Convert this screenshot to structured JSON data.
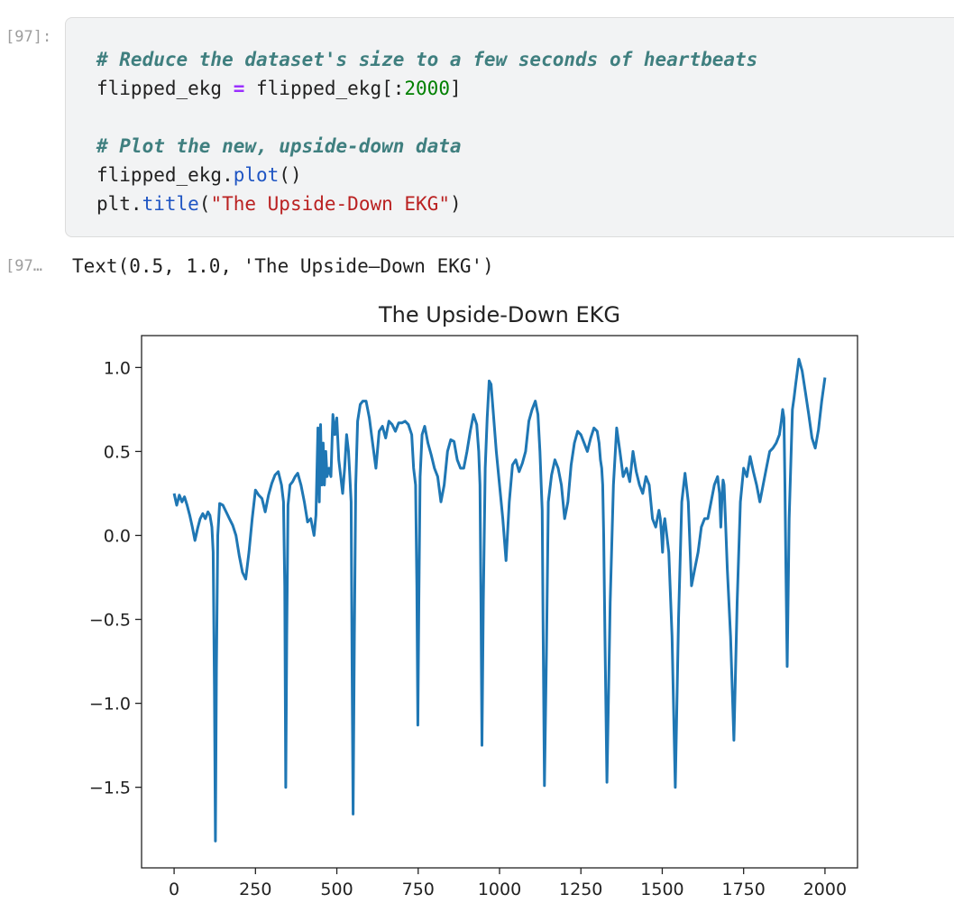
{
  "input_cell": {
    "prompt": "[97]:",
    "lines": [
      {
        "comment": "# Reduce the dataset's size to a few seconds of heartbeats"
      },
      {
        "var": "flipped_ekg ",
        "op": "=",
        "rhs_a": " flipped_ekg[:",
        "num": "2000",
        "rhs_b": "]"
      },
      {
        "blank": ""
      },
      {
        "comment": "# Plot the new, upside-down data"
      },
      {
        "obj": "flipped_ekg.",
        "fn": "plot",
        "args": "()"
      },
      {
        "obj": "plt.",
        "fn": "title",
        "open": "(",
        "str": "\"The Upside-Down EKG\"",
        "close": ")"
      }
    ]
  },
  "output_cell": {
    "prompt": "[97…",
    "text": "Text(0.5, 1.0, 'The Upside–Down EKG')"
  },
  "chart_data": {
    "type": "line",
    "title": "The Upside-Down EKG",
    "xlabel": "",
    "ylabel": "",
    "xlim": [
      -100,
      2100
    ],
    "ylim": [
      -1.98,
      1.19
    ],
    "xticks": [
      0,
      250,
      500,
      750,
      1000,
      1250,
      1500,
      1750,
      2000
    ],
    "yticks": [
      1.0,
      0.5,
      0.0,
      -0.5,
      -1.0,
      -1.5
    ],
    "xtick_labels": [
      "0",
      "250",
      "500",
      "750",
      "1000",
      "1250",
      "1500",
      "1750",
      "2000"
    ],
    "ytick_labels": [
      "1.0",
      "0.5",
      "0.0",
      "−0.5",
      "−1.0",
      "−1.5"
    ],
    "grid": false,
    "line_color": "#1f77b4",
    "series": [
      {
        "x": [
          0,
          8,
          16,
          24,
          32,
          40,
          48,
          56,
          64,
          72,
          80,
          88,
          96,
          104,
          110,
          116,
          120,
          124,
          127,
          130,
          134,
          140,
          150,
          160,
          170,
          180,
          190,
          200,
          210,
          220,
          230,
          240,
          250,
          260,
          270,
          280,
          290,
          300,
          310,
          320,
          330,
          336,
          340,
          343,
          346,
          350,
          356,
          364,
          372,
          380,
          390,
          400,
          410,
          420,
          430,
          436,
          442,
          446,
          450,
          454,
          458,
          462,
          466,
          470,
          476,
          482,
          488,
          494,
          500,
          506,
          512,
          518,
          524,
          530,
          536,
          540,
          544,
          547,
          550,
          554,
          558,
          564,
          572,
          580,
          590,
          600,
          610,
          620,
          630,
          640,
          650,
          660,
          670,
          680,
          690,
          700,
          710,
          720,
          730,
          736,
          742,
          746,
          749,
          752,
          756,
          762,
          770,
          780,
          790,
          800,
          810,
          820,
          830,
          840,
          850,
          860,
          870,
          880,
          890,
          900,
          910,
          920,
          930,
          936,
          940,
          943,
          946,
          950,
          956,
          962,
          968,
          974,
          980,
          990,
          1000,
          1010,
          1020,
          1030,
          1040,
          1050,
          1060,
          1070,
          1080,
          1090,
          1100,
          1110,
          1118,
          1124,
          1128,
          1131,
          1134,
          1138,
          1144,
          1150,
          1160,
          1170,
          1180,
          1190,
          1200,
          1210,
          1220,
          1230,
          1240,
          1250,
          1260,
          1270,
          1280,
          1290,
          1300,
          1306,
          1310,
          1314,
          1317,
          1320,
          1324,
          1330,
          1340,
          1350,
          1360,
          1370,
          1380,
          1390,
          1400,
          1410,
          1420,
          1430,
          1440,
          1450,
          1460,
          1470,
          1480,
          1490,
          1494,
          1498,
          1501,
          1504,
          1508,
          1514,
          1520,
          1530,
          1540,
          1550,
          1560,
          1570,
          1580,
          1590,
          1600,
          1610,
          1620,
          1630,
          1640,
          1650,
          1660,
          1670,
          1676,
          1680,
          1684,
          1687,
          1690,
          1694,
          1700,
          1710,
          1720,
          1730,
          1740,
          1750,
          1760,
          1770,
          1780,
          1790,
          1800,
          1810,
          1820,
          1830,
          1840,
          1850,
          1860,
          1866,
          1870,
          1874,
          1877,
          1880,
          1884,
          1890,
          1900,
          1905,
          1910,
          1920,
          1930,
          1940,
          1950,
          1960,
          1970,
          1980,
          1990,
          2000
        ],
        "values": [
          0.25,
          0.18,
          0.24,
          0.2,
          0.23,
          0.18,
          0.12,
          0.05,
          -0.03,
          0.04,
          0.1,
          0.13,
          0.1,
          0.14,
          0.12,
          0.05,
          -0.1,
          -0.9,
          -1.82,
          -0.8,
          0.0,
          0.19,
          0.18,
          0.14,
          0.1,
          0.06,
          0.0,
          -0.12,
          -0.22,
          -0.26,
          -0.1,
          0.1,
          0.27,
          0.24,
          0.22,
          0.14,
          0.24,
          0.31,
          0.36,
          0.38,
          0.3,
          0.2,
          -0.3,
          -1.5,
          -0.6,
          0.18,
          0.3,
          0.32,
          0.35,
          0.37,
          0.3,
          0.2,
          0.08,
          0.1,
          0.0,
          0.12,
          0.64,
          0.2,
          0.66,
          0.3,
          0.55,
          0.3,
          0.5,
          0.35,
          0.4,
          0.35,
          0.72,
          0.6,
          0.7,
          0.45,
          0.35,
          0.25,
          0.4,
          0.6,
          0.5,
          0.35,
          0.2,
          -0.8,
          -1.66,
          -0.6,
          0.3,
          0.68,
          0.78,
          0.8,
          0.8,
          0.7,
          0.55,
          0.4,
          0.62,
          0.65,
          0.58,
          0.68,
          0.66,
          0.62,
          0.67,
          0.67,
          0.68,
          0.66,
          0.6,
          0.4,
          0.3,
          -0.3,
          -1.13,
          -0.4,
          0.35,
          0.6,
          0.65,
          0.55,
          0.48,
          0.4,
          0.35,
          0.2,
          0.3,
          0.5,
          0.57,
          0.56,
          0.45,
          0.4,
          0.4,
          0.5,
          0.62,
          0.72,
          0.66,
          0.5,
          0.3,
          -0.4,
          -1.25,
          -0.4,
          0.4,
          0.7,
          0.92,
          0.9,
          0.75,
          0.5,
          0.3,
          0.1,
          -0.15,
          0.2,
          0.42,
          0.45,
          0.38,
          0.43,
          0.5,
          0.68,
          0.75,
          0.8,
          0.72,
          0.5,
          0.3,
          0.15,
          -0.6,
          -1.49,
          -0.7,
          0.2,
          0.36,
          0.45,
          0.4,
          0.3,
          0.1,
          0.2,
          0.42,
          0.55,
          0.62,
          0.6,
          0.55,
          0.5,
          0.58,
          0.64,
          0.62,
          0.55,
          0.45,
          0.4,
          0.3,
          0.0,
          -0.6,
          -1.47,
          -0.4,
          0.3,
          0.64,
          0.5,
          0.35,
          0.4,
          0.32,
          0.5,
          0.38,
          0.3,
          0.25,
          0.35,
          0.3,
          0.1,
          0.05,
          0.15,
          0.1,
          0.0,
          -0.1,
          0.05,
          0.1,
          0.0,
          -0.1,
          -0.6,
          -1.5,
          -0.5,
          0.2,
          0.37,
          0.2,
          -0.3,
          -0.2,
          -0.1,
          0.05,
          0.1,
          0.1,
          0.2,
          0.3,
          0.35,
          0.25,
          0.05,
          0.25,
          0.33,
          0.3,
          0.1,
          -0.2,
          -0.6,
          -1.22,
          -0.4,
          0.2,
          0.4,
          0.35,
          0.47,
          0.38,
          0.3,
          0.2,
          0.3,
          0.4,
          0.5,
          0.52,
          0.55,
          0.6,
          0.68,
          0.75,
          0.7,
          0.3,
          -0.2,
          -0.78,
          0.1,
          0.75,
          0.82,
          0.9,
          1.05,
          0.98,
          0.85,
          0.72,
          0.58,
          0.52,
          0.63,
          0.8,
          0.94
        ]
      }
    ]
  }
}
